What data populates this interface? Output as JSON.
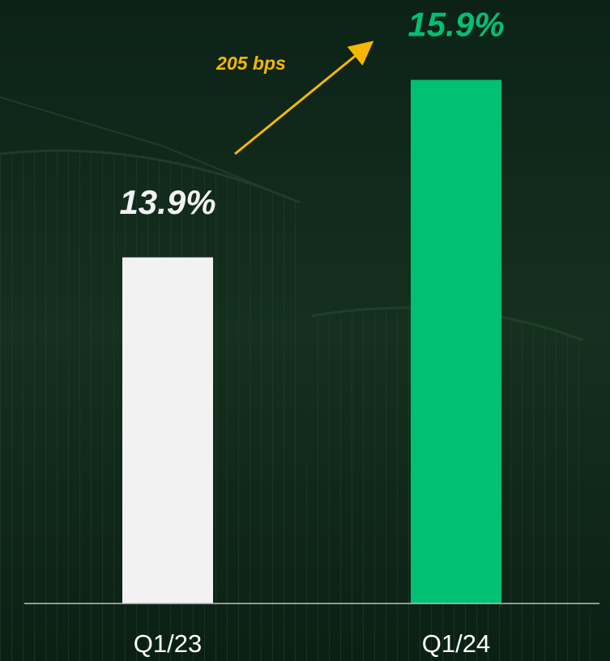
{
  "chart_data": {
    "type": "bar",
    "categories": [
      "Q1/23",
      "Q1/24"
    ],
    "values": [
      13.9,
      15.9
    ],
    "value_labels": [
      "13.9%",
      "15.9%"
    ],
    "colors": [
      "#f2f2f2",
      "#00c073"
    ],
    "annotation": "205 bps",
    "annotation_color": "#f5b800",
    "ylim": [
      10,
      16.8
    ]
  }
}
